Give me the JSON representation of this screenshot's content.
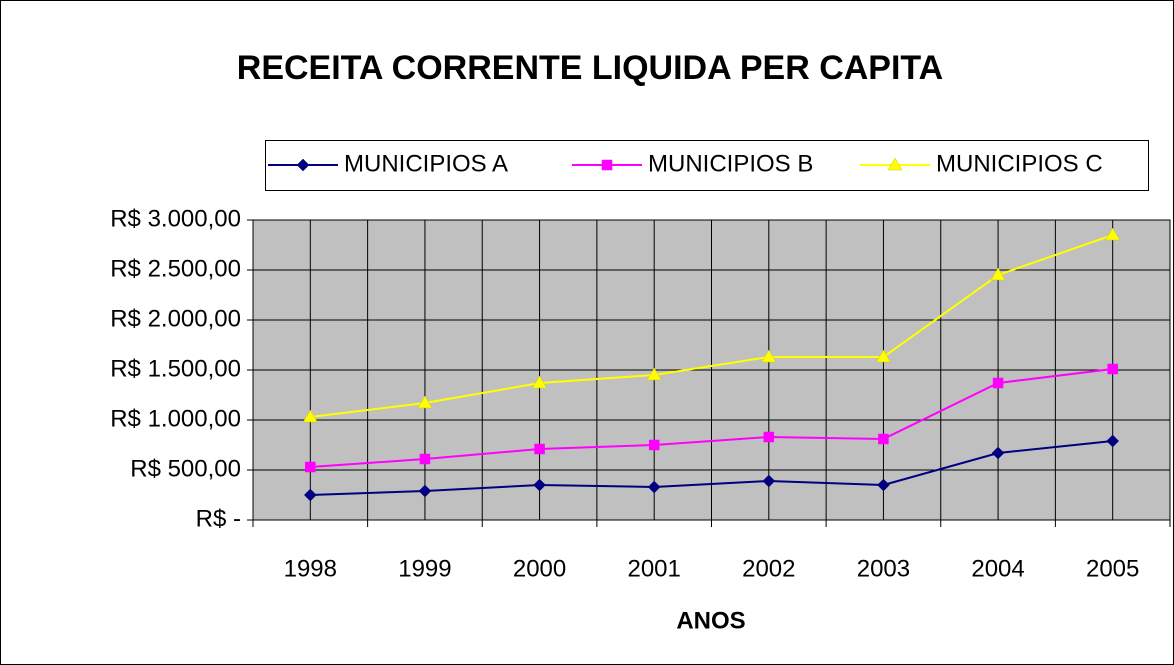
{
  "chart_data": {
    "type": "line",
    "title": "RECEITA CORRENTE LIQUIDA PER CAPITA",
    "x_label": "ANOS",
    "categories": [
      "1998",
      "1999",
      "2000",
      "2001",
      "2002",
      "2003",
      "2004",
      "2005"
    ],
    "series": [
      {
        "name": "MUNICIPIOS A",
        "color": "#000080",
        "marker": "diamond",
        "values": [
          250,
          290,
          350,
          330,
          390,
          350,
          670,
          790
        ]
      },
      {
        "name": "MUNICIPIOS B",
        "color": "#ff00ff",
        "marker": "square",
        "values": [
          530,
          610,
          710,
          750,
          830,
          810,
          1370,
          1510
        ]
      },
      {
        "name": "MUNICIPIOS C",
        "color": "#ffff00",
        "marker": "triangle",
        "values": [
          1030,
          1170,
          1370,
          1450,
          1630,
          1630,
          2450,
          2850
        ]
      }
    ],
    "ylim": [
      0,
      3000
    ],
    "yticks": [
      {
        "value": 0,
        "label": "R$ -"
      },
      {
        "value": 500,
        "label": "R$ 500,00"
      },
      {
        "value": 1000,
        "label": "R$ 1.000,00"
      },
      {
        "value": 1500,
        "label": "R$ 1.500,00"
      },
      {
        "value": 2000,
        "label": "R$ 2.000,00"
      },
      {
        "value": 2500,
        "label": "R$ 2.500,00"
      },
      {
        "value": 3000,
        "label": "R$ 3.000,00"
      }
    ],
    "grid": true,
    "plot_background": "#c0c0c0"
  }
}
